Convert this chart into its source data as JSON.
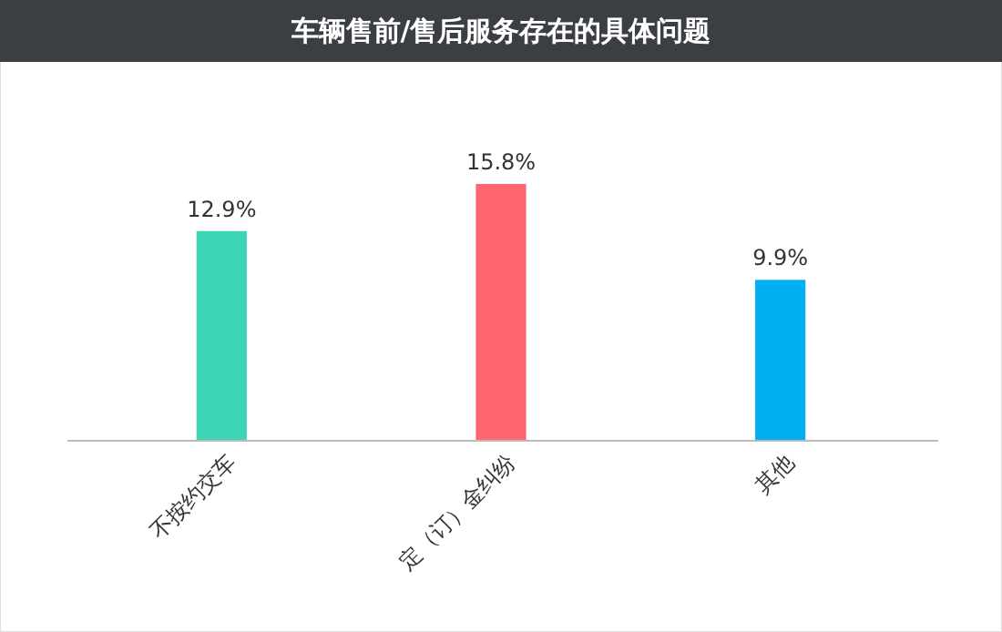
{
  "chart_data": {
    "type": "bar",
    "title": "车辆售前/售后服务存在的具体问题",
    "categories": [
      "不按约交车",
      "定（订）金纠纷",
      "其他"
    ],
    "values": [
      12.9,
      15.8,
      9.9
    ],
    "value_labels": [
      "12.9%",
      "15.8%",
      "9.9%"
    ],
    "colors": [
      "#3dd6b5",
      "#ff6670",
      "#00b0f0"
    ]
  }
}
